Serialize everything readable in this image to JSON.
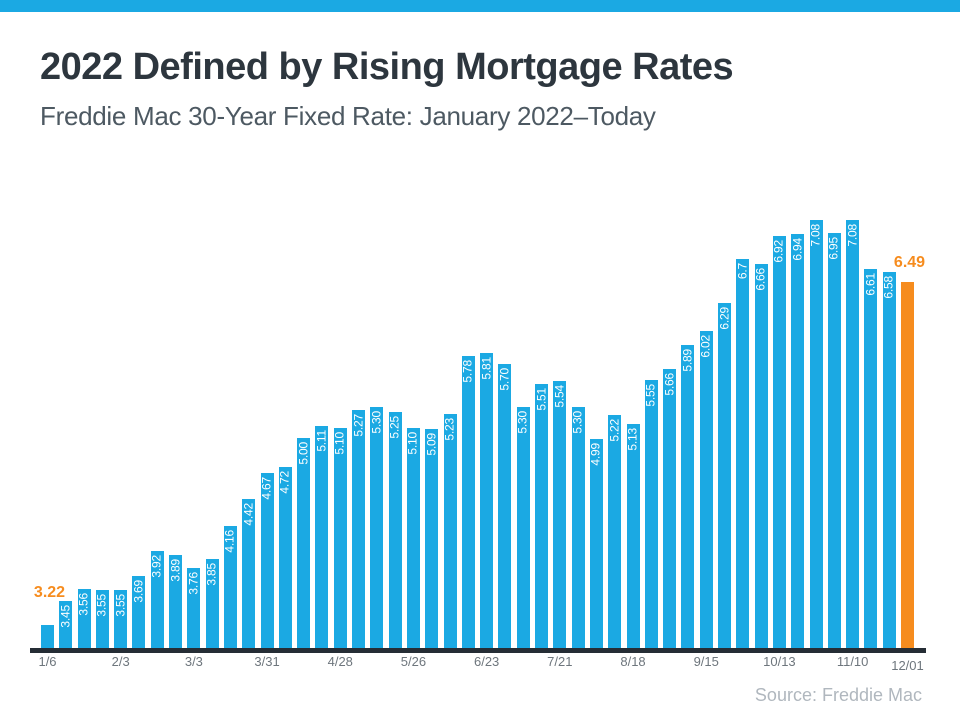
{
  "page": {
    "title": "2022 Defined by Rising Mortgage Rates",
    "subtitle": "Freddie Mac 30-Year Fixed Rate: January 2022–Today",
    "source": "Source: Freddie Mac"
  },
  "colors": {
    "bar_blue": "#1BA9E3",
    "bar_orange": "#F68C1E",
    "top_strip": "#1BA9E3",
    "axis": "#252D35",
    "title": "#2D363E",
    "subtitle": "#4D5962",
    "tick": "#6E767D",
    "source": "#B0B7BE",
    "bar_label": "#FFFFFF"
  },
  "chart_data": {
    "type": "bar",
    "title": "2022 Defined by Rising Mortgage Rates",
    "subtitle": "Freddie Mac 30-Year Fixed Rate: January 2022–Today",
    "source": "Source: Freddie Mac",
    "unit": "percent",
    "ylim": [
      3.0,
      7.3
    ],
    "grid": false,
    "legend": false,
    "bars": [
      {
        "label": "3.22",
        "value": 3.22,
        "label_inside": false,
        "annotation": "3.22"
      },
      {
        "label": "3.45",
        "value": 3.45
      },
      {
        "label": "3.56",
        "value": 3.56
      },
      {
        "label": "3.55",
        "value": 3.55
      },
      {
        "label": "3.55",
        "value": 3.55
      },
      {
        "label": "3.69",
        "value": 3.69
      },
      {
        "label": "3.92",
        "value": 3.92
      },
      {
        "label": "3.89",
        "value": 3.89
      },
      {
        "label": "3.76",
        "value": 3.76
      },
      {
        "label": "3.85",
        "value": 3.85
      },
      {
        "label": "4.16",
        "value": 4.16
      },
      {
        "label": "4.42",
        "value": 4.42
      },
      {
        "label": "4.67",
        "value": 4.67
      },
      {
        "label": "4.72",
        "value": 4.72
      },
      {
        "label": "5.00",
        "value": 5.0
      },
      {
        "label": "5.11",
        "value": 5.11
      },
      {
        "label": "5.10",
        "value": 5.1
      },
      {
        "label": "5.27",
        "value": 5.27
      },
      {
        "label": "5.30",
        "value": 5.3
      },
      {
        "label": "5.25",
        "value": 5.25
      },
      {
        "label": "5.10",
        "value": 5.1
      },
      {
        "label": "5.09",
        "value": 5.09
      },
      {
        "label": "5.23",
        "value": 5.23
      },
      {
        "label": "5.78",
        "value": 5.78
      },
      {
        "label": "5.81",
        "value": 5.81
      },
      {
        "label": "5.70",
        "value": 5.7
      },
      {
        "label": "5.30",
        "value": 5.3
      },
      {
        "label": "5.51",
        "value": 5.51
      },
      {
        "label": "5.54",
        "value": 5.54
      },
      {
        "label": "5.30",
        "value": 5.3
      },
      {
        "label": "4.99",
        "value": 4.99
      },
      {
        "label": "5.22",
        "value": 5.22
      },
      {
        "label": "5.13",
        "value": 5.13
      },
      {
        "label": "5.55",
        "value": 5.55
      },
      {
        "label": "5.66",
        "value": 5.66
      },
      {
        "label": "5.89",
        "value": 5.89
      },
      {
        "label": "6.02",
        "value": 6.02
      },
      {
        "label": "6.29",
        "value": 6.29
      },
      {
        "label": "6.7",
        "value": 6.7
      },
      {
        "label": "6.66",
        "value": 6.66
      },
      {
        "label": "6.92",
        "value": 6.92
      },
      {
        "label": "6.94",
        "value": 6.94
      },
      {
        "label": "7.08",
        "value": 7.08
      },
      {
        "label": "6.95",
        "value": 6.95
      },
      {
        "label": "7.08",
        "value": 7.08
      },
      {
        "label": "6.61",
        "value": 6.61
      },
      {
        "label": "6.58",
        "value": 6.58
      },
      {
        "label": "6.49",
        "value": 6.49,
        "label_inside": false,
        "annotation": "6.49",
        "highlight": true
      }
    ],
    "x_ticks": [
      {
        "label": "1/6",
        "bar": 0
      },
      {
        "label": "2/3",
        "bar": 4
      },
      {
        "label": "3/3",
        "bar": 8
      },
      {
        "label": "3/31",
        "bar": 12
      },
      {
        "label": "4/28",
        "bar": 16
      },
      {
        "label": "5/26",
        "bar": 20
      },
      {
        "label": "6/23",
        "bar": 24
      },
      {
        "label": "7/21",
        "bar": 28
      },
      {
        "label": "8/18",
        "bar": 32
      },
      {
        "label": "9/15",
        "bar": 36
      },
      {
        "label": "10/13",
        "bar": 40
      },
      {
        "label": "11/10",
        "bar": 44
      },
      {
        "label": "12/01",
        "bar": 47,
        "offset_down": true
      }
    ]
  }
}
